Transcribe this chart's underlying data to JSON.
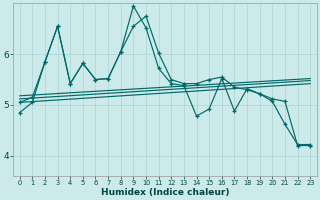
{
  "xlabel": "Humidex (Indice chaleur)",
  "bg_color": "#cceaea",
  "line_color": "#006868",
  "grid_color": "#aad4d4",
  "ylim": [
    3.6,
    7.0
  ],
  "xlim": [
    -0.5,
    23.5
  ],
  "yticks": [
    4,
    5,
    6
  ],
  "xticks": [
    0,
    1,
    2,
    3,
    4,
    5,
    6,
    7,
    8,
    9,
    10,
    11,
    12,
    13,
    14,
    15,
    16,
    17,
    18,
    19,
    20,
    21,
    22,
    23
  ],
  "series1_x": [
    0,
    1,
    2,
    3,
    4,
    5,
    6,
    7,
    8,
    9,
    10,
    11,
    12,
    13,
    14,
    15,
    16,
    17,
    18,
    19,
    20,
    21,
    22,
    23
  ],
  "series1_y": [
    5.05,
    5.15,
    5.85,
    6.55,
    5.42,
    5.82,
    5.5,
    5.52,
    6.05,
    6.55,
    6.75,
    6.02,
    5.5,
    5.42,
    5.42,
    5.5,
    5.55,
    5.35,
    5.3,
    5.22,
    5.12,
    5.07,
    4.2,
    4.2
  ],
  "series2_x": [
    0,
    1,
    2,
    3,
    4,
    5,
    6,
    7,
    8,
    9,
    10,
    11,
    12,
    13,
    14,
    15,
    16,
    17,
    18,
    19,
    20,
    21,
    22,
    23
  ],
  "series2_y": [
    4.85,
    5.05,
    5.85,
    6.55,
    5.42,
    5.82,
    5.5,
    5.52,
    6.05,
    6.95,
    6.52,
    5.72,
    5.42,
    5.38,
    4.78,
    4.92,
    5.52,
    4.88,
    5.32,
    5.22,
    5.07,
    4.62,
    4.22,
    4.22
  ],
  "trend1_x": [
    0,
    23
  ],
  "trend1_y": [
    5.05,
    5.42
  ],
  "trend2_x": [
    0,
    23
  ],
  "trend2_y": [
    5.12,
    5.48
  ],
  "trend3_x": [
    0,
    23
  ],
  "trend3_y": [
    5.18,
    5.52
  ]
}
